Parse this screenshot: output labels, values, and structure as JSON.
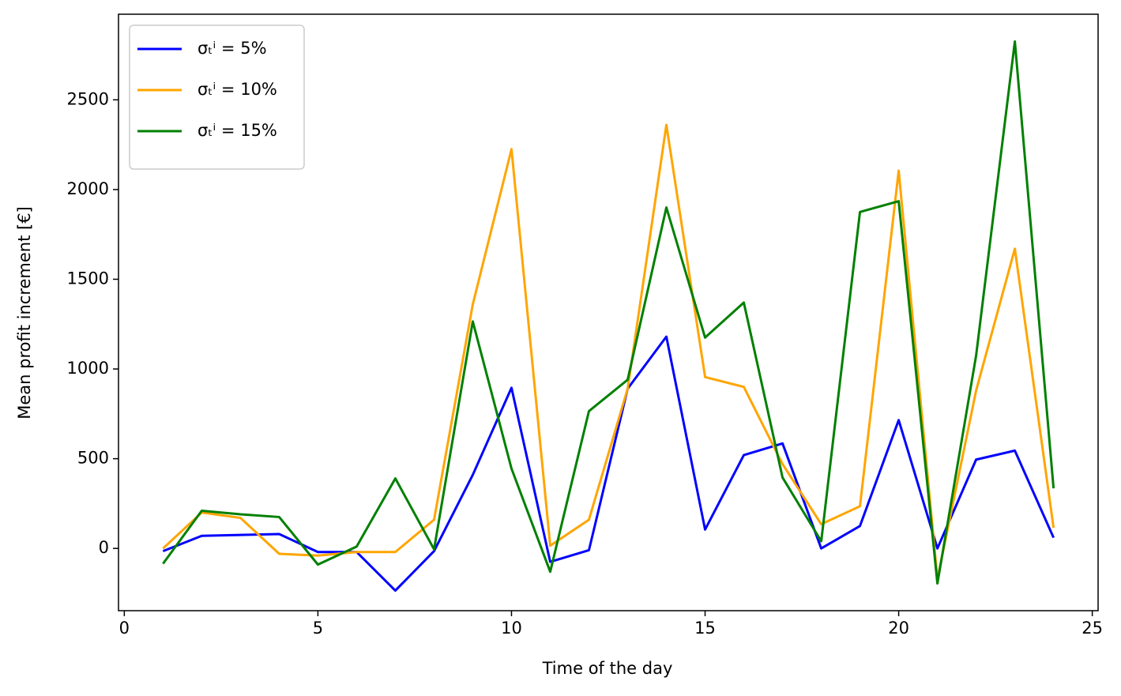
{
  "chart_data": {
    "type": "line",
    "x": [
      1,
      2,
      3,
      4,
      5,
      6,
      7,
      8,
      9,
      10,
      11,
      12,
      13,
      14,
      15,
      16,
      17,
      18,
      19,
      20,
      21,
      22,
      23,
      24
    ],
    "x_label": "Time of the day",
    "y_label": "Mean profit increment [€]",
    "series": [
      {
        "name": "σₜⁱ = 5%",
        "color": "#0000ff",
        "values": [
          -15,
          70,
          75,
          80,
          -20,
          -20,
          -235,
          -15,
          410,
          895,
          -75,
          -10,
          890,
          1180,
          105,
          520,
          585,
          0,
          125,
          715,
          0,
          495,
          545,
          60
        ]
      },
      {
        "name": "σₜⁱ = 10%",
        "color": "#ffa500",
        "values": [
          0,
          200,
          170,
          -30,
          -40,
          -20,
          -20,
          160,
          1360,
          2225,
          15,
          160,
          890,
          2360,
          955,
          900,
          470,
          135,
          235,
          2105,
          -170,
          880,
          1670,
          115
        ]
      },
      {
        "name": "σₜⁱ = 15%",
        "color": "#008000",
        "values": [
          -85,
          210,
          190,
          175,
          -90,
          10,
          390,
          -5,
          1265,
          445,
          -130,
          765,
          940,
          1900,
          1175,
          1370,
          395,
          40,
          1875,
          1935,
          -195,
          1075,
          2825,
          335
        ]
      }
    ],
    "xlim": [
      -0.15,
      25.15
    ],
    "ylim": [
      -347,
      2977
    ],
    "xticks": [
      0,
      5,
      10,
      15,
      20,
      25
    ],
    "yticks": [
      0,
      500,
      1000,
      1500,
      2000,
      2500
    ],
    "legend": "upper left",
    "grid": false
  }
}
